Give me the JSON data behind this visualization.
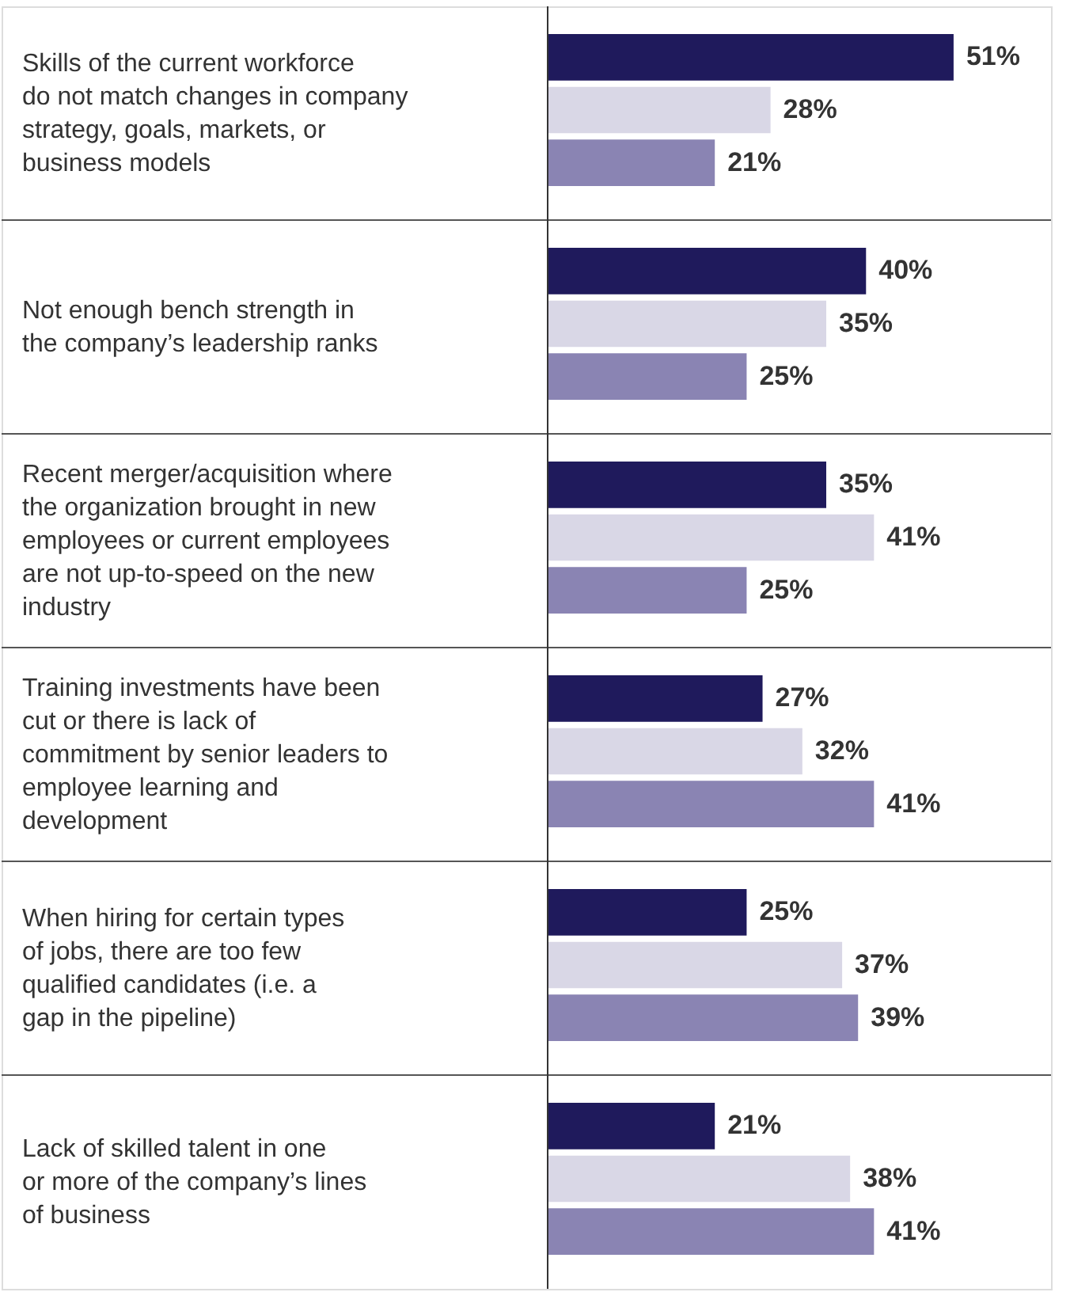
{
  "chart_data": {
    "type": "bar",
    "orientation": "horizontal",
    "categories": [
      "Skills of the current workforce do not match changes in company strategy, goals, markets, or business models",
      "Not enough bench strength in the company’s leadership ranks",
      "Recent merger/acquisition where the organization brought in new employees or current employees are not up-to-speed on the new industry",
      "Training investments have been cut or there is lack of commitment by senior leaders to employee learning and development",
      "When hiring for certain types of jobs, there are too few qualified candidates (i.e. a gap in the pipeline)",
      "Lack of skilled talent in one or more of the company’s lines of business"
    ],
    "series": [
      {
        "color": "#1f1a5c",
        "values": [
          51,
          40,
          35,
          27,
          25,
          21
        ],
        "value_labels": [
          "51%",
          "40%",
          "35%",
          "27%",
          "25%",
          "21%"
        ]
      },
      {
        "color": "#d9d7e6",
        "values": [
          28,
          35,
          41,
          32,
          37,
          38
        ],
        "value_labels": [
          "28%",
          "35%",
          "41%",
          "32%",
          "37%",
          "38%"
        ]
      },
      {
        "color": "#8a84b3",
        "values": [
          21,
          25,
          25,
          41,
          39,
          41
        ],
        "value_labels": [
          "21%",
          "25%",
          "25%",
          "41%",
          "39%",
          "41%"
        ]
      }
    ]
  }
}
